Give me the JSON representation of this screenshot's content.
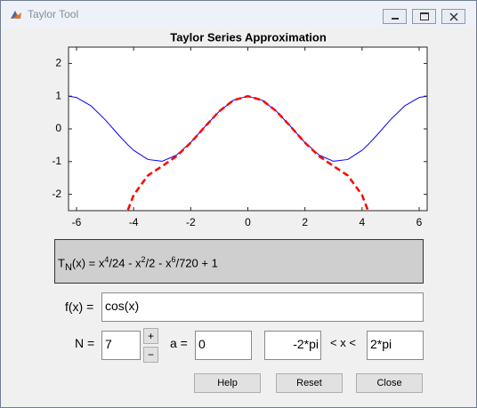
{
  "window": {
    "title": "Taylor Tool"
  },
  "chart_data": {
    "type": "line",
    "title": "Taylor Series Approximation",
    "x": [
      -6.28,
      -6,
      -5.5,
      -5,
      -4.5,
      -4.2,
      -4,
      -3.5,
      -3,
      -2.5,
      -2,
      -1.5,
      -1,
      -0.5,
      0,
      0.5,
      1,
      1.5,
      2,
      2.5,
      3,
      3.5,
      4,
      4.2,
      4.5,
      5,
      5.5,
      6,
      6.28
    ],
    "series": [
      {
        "color": "#0000ff",
        "style": "solid",
        "values": [
          1.0,
          0.96,
          0.709,
          0.284,
          -0.211,
          -0.49,
          -0.654,
          -0.936,
          -0.99,
          -0.801,
          -0.416,
          0.071,
          0.54,
          0.878,
          1,
          0.878,
          0.54,
          0.071,
          -0.416,
          -0.801,
          -0.99,
          -0.936,
          -0.654,
          -0.49,
          -0.211,
          0.284,
          0.709,
          0.96,
          1.0
        ]
      },
      {
        "color": "#ff0000",
        "style": "dashed",
        "values": [
          null,
          null,
          null,
          null,
          null,
          -2.479,
          -2.022,
          -1.425,
          -1.138,
          -0.837,
          -0.422,
          0.07,
          0.54,
          0.878,
          1,
          0.878,
          0.54,
          0.07,
          -0.422,
          -0.837,
          -1.138,
          -1.425,
          -2.022,
          -2.479,
          null,
          null,
          null,
          null,
          null
        ]
      }
    ],
    "xlim": [
      -6.28,
      6.28
    ],
    "ylim": [
      -2.5,
      2.5
    ],
    "xticks": [
      -6,
      -4,
      -2,
      0,
      2,
      4,
      6
    ],
    "yticks": [
      -2,
      -1,
      0,
      1,
      2
    ],
    "grid": false
  },
  "expression_parts": [
    "T",
    "N",
    "(x) = x",
    "4",
    "/24 - x",
    "2",
    "/2 - x",
    "6",
    "/720 + 1"
  ],
  "controls": {
    "f_label": "f(x) =",
    "f_value": "cos(x)",
    "n_label": "N =",
    "n_value": "7",
    "plus": "+",
    "minus": "−",
    "a_label": "a =",
    "a_value": "0",
    "x_min": "-2*pi",
    "range_label": "< x <",
    "x_max": "2*pi"
  },
  "buttons": [
    "Help",
    "Reset",
    "Close"
  ]
}
